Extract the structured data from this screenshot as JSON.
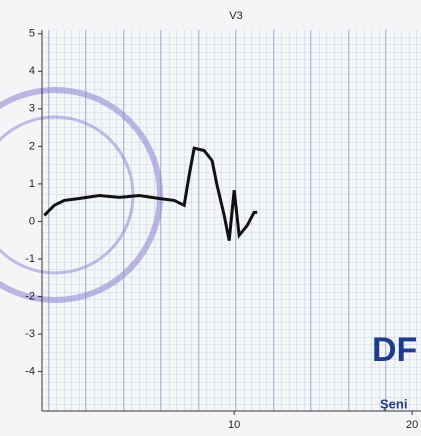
{
  "chart_data": {
    "type": "line",
    "title": "V3",
    "x": [
      -0.67,
      -0.11,
      0.45,
      1.29,
      2.42,
      3.54,
      4.66,
      5.79,
      6.63,
      7.19,
      7.47,
      7.75,
      8.31,
      8.76,
      9.04,
      9.44,
      9.72,
      10.0,
      10.28,
      10.73,
      11.12,
      11.29
    ],
    "series": [
      {
        "name": "V3",
        "color": "#111111",
        "values": [
          0.16,
          0.43,
          0.56,
          0.61,
          0.69,
          0.64,
          0.69,
          0.61,
          0.56,
          0.43,
          1.23,
          1.95,
          1.89,
          1.62,
          0.96,
          0.16,
          -0.51,
          0.83,
          -0.37,
          -0.11,
          0.24,
          0.24
        ]
      }
    ],
    "xlim": [
      -0.8,
      20.5
    ],
    "xticks": [
      10,
      20
    ],
    "ylim": [
      -5.05,
      5.1
    ],
    "yticks": [
      -4,
      -3,
      -2,
      -1,
      0,
      1,
      2,
      3,
      4,
      5
    ],
    "grid": true,
    "annotations": [
      "DF",
      "Şeni"
    ]
  }
}
